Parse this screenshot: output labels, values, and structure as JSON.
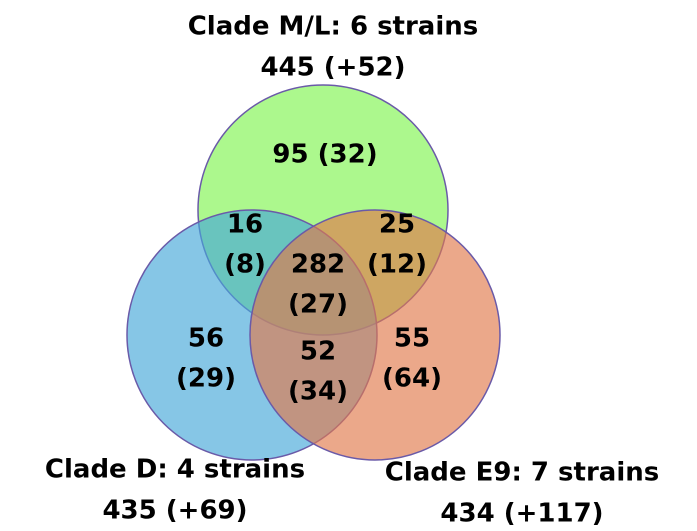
{
  "sets": [
    {
      "name": "Clade M/L: 6 strains",
      "count": "445 (+52)"
    },
    {
      "name": "Clade D: 4 strains",
      "count": "435 (+69)"
    },
    {
      "name": "Clade E9: 7 strains",
      "count": "434 (+117)"
    }
  ],
  "regions": [
    {
      "lines": [
        "95 (32)"
      ]
    },
    {
      "lines": [
        "16",
        "(8)"
      ]
    },
    {
      "lines": [
        "25",
        "(12)"
      ]
    },
    {
      "lines": [
        "282",
        "(27)"
      ]
    },
    {
      "lines": [
        "56",
        "(29)"
      ]
    },
    {
      "lines": [
        "52",
        "(34)"
      ]
    },
    {
      "lines": [
        "55",
        "(64)"
      ]
    }
  ]
}
